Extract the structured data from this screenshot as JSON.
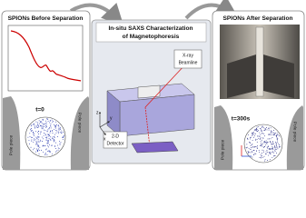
{
  "panels": [
    {
      "title": "SPIONs Before Separation",
      "time": "t=0",
      "pole_left": "Pole piece",
      "pole_right": "Pole piece"
    },
    {
      "title_lines": [
        "In-situ SAXS Characterization",
        "of Magnetophoresis"
      ],
      "beamline": [
        "X-ray",
        "Beamline"
      ],
      "detector": [
        "2-D",
        "Detector"
      ],
      "axes": [
        "z",
        "y",
        "x"
      ]
    },
    {
      "title": "SPIONs After Separation",
      "time": "t=300s",
      "pole_left": "Pole piece",
      "pole_right": "Pole piece"
    }
  ]
}
